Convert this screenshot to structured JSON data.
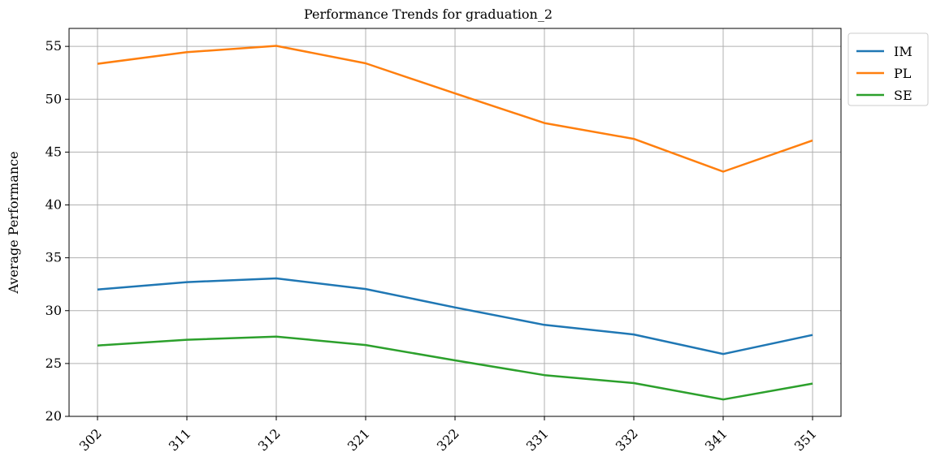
{
  "chart_data": {
    "type": "line",
    "title": "Performance Trends for graduation_2",
    "xlabel": "",
    "ylabel": "Average Performance",
    "categories": [
      "302",
      "311",
      "312",
      "321",
      "322",
      "331",
      "332",
      "341",
      "351"
    ],
    "ylim": [
      20,
      56.7
    ],
    "yticks": [
      20,
      25,
      30,
      35,
      40,
      45,
      50,
      55
    ],
    "grid": true,
    "legend_position": "outside-top-right",
    "series": [
      {
        "name": "IM",
        "color": "#1f77b4",
        "values": [
          32.0,
          32.7,
          33.05,
          32.05,
          30.3,
          28.65,
          27.75,
          25.9,
          27.7
        ]
      },
      {
        "name": "PL",
        "color": "#ff7f0e",
        "values": [
          53.35,
          54.45,
          55.05,
          53.4,
          50.55,
          47.75,
          46.25,
          43.15,
          46.1
        ]
      },
      {
        "name": "SE",
        "color": "#2ca02c",
        "values": [
          26.7,
          27.25,
          27.55,
          26.75,
          25.3,
          23.9,
          23.15,
          21.6,
          23.1
        ]
      }
    ]
  }
}
